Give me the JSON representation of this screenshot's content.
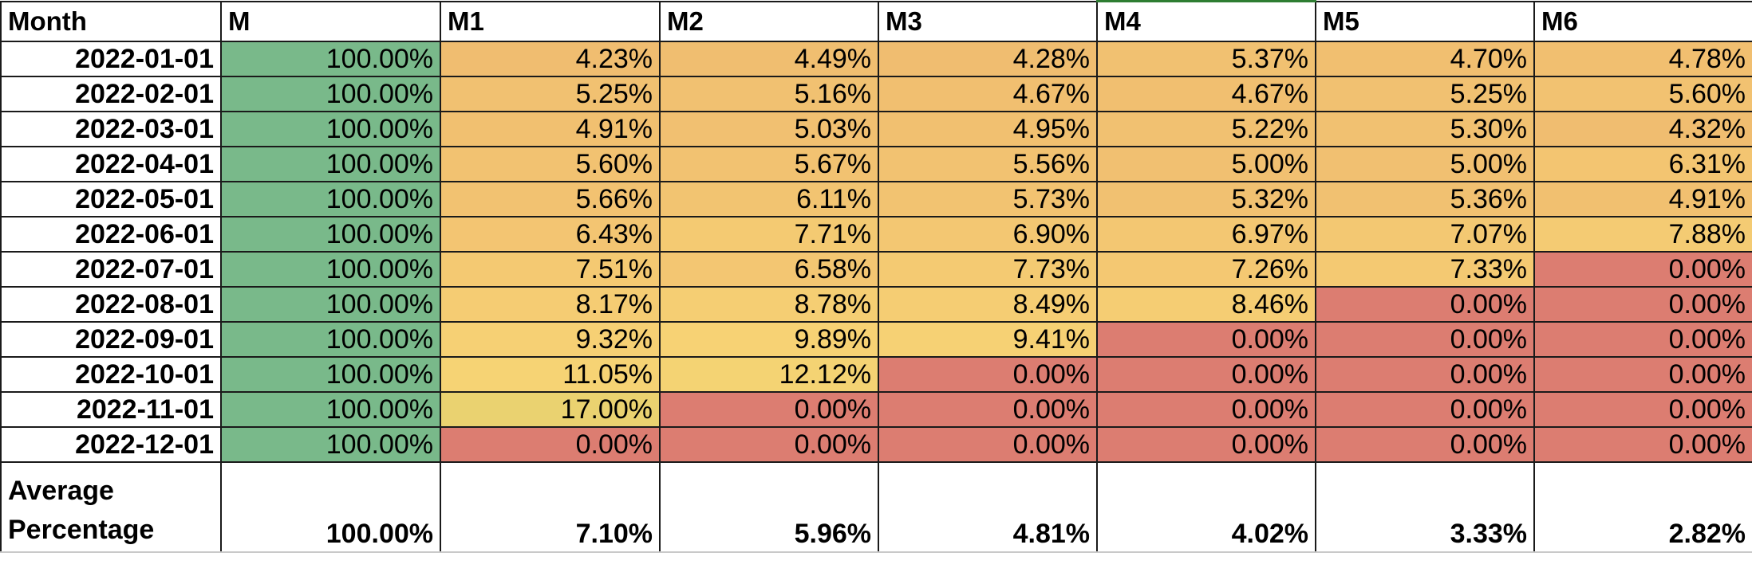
{
  "colors": {
    "green": "#79b98a",
    "red": "#dc7d71",
    "yellow_light": "#f7d374",
    "gradient_low": "#f0bd70",
    "gradient_high": "#ead270",
    "active_cell_border": "#2e7d32"
  },
  "header": {
    "month_label": "Month",
    "columns": [
      "M",
      "M1",
      "M2",
      "M3",
      "M4",
      "M5",
      "M6"
    ]
  },
  "rows": [
    {
      "month": "2022-01-01",
      "values": [
        "100.00%",
        "4.23%",
        "4.49%",
        "4.28%",
        "5.37%",
        "4.70%",
        "4.78%"
      ]
    },
    {
      "month": "2022-02-01",
      "values": [
        "100.00%",
        "5.25%",
        "5.16%",
        "4.67%",
        "4.67%",
        "5.25%",
        "5.60%"
      ]
    },
    {
      "month": "2022-03-01",
      "values": [
        "100.00%",
        "4.91%",
        "5.03%",
        "4.95%",
        "5.22%",
        "5.30%",
        "4.32%"
      ]
    },
    {
      "month": "2022-04-01",
      "values": [
        "100.00%",
        "5.60%",
        "5.67%",
        "5.56%",
        "5.00%",
        "5.00%",
        "6.31%"
      ]
    },
    {
      "month": "2022-05-01",
      "values": [
        "100.00%",
        "5.66%",
        "6.11%",
        "5.73%",
        "5.32%",
        "5.36%",
        "4.91%"
      ]
    },
    {
      "month": "2022-06-01",
      "values": [
        "100.00%",
        "6.43%",
        "7.71%",
        "6.90%",
        "6.97%",
        "7.07%",
        "7.88%"
      ]
    },
    {
      "month": "2022-07-01",
      "values": [
        "100.00%",
        "7.51%",
        "6.58%",
        "7.73%",
        "7.26%",
        "7.33%",
        "0.00%"
      ]
    },
    {
      "month": "2022-08-01",
      "values": [
        "100.00%",
        "8.17%",
        "8.78%",
        "8.49%",
        "8.46%",
        "0.00%",
        "0.00%"
      ]
    },
    {
      "month": "2022-09-01",
      "values": [
        "100.00%",
        "9.32%",
        "9.89%",
        "9.41%",
        "0.00%",
        "0.00%",
        "0.00%"
      ]
    },
    {
      "month": "2022-10-01",
      "values": [
        "100.00%",
        "11.05%",
        "12.12%",
        "0.00%",
        "0.00%",
        "0.00%",
        "0.00%"
      ]
    },
    {
      "month": "2022-11-01",
      "values": [
        "100.00%",
        "17.00%",
        "0.00%",
        "0.00%",
        "0.00%",
        "0.00%",
        "0.00%"
      ]
    },
    {
      "month": "2022-12-01",
      "values": [
        "100.00%",
        "0.00%",
        "0.00%",
        "0.00%",
        "0.00%",
        "0.00%",
        "0.00%"
      ]
    }
  ],
  "average": {
    "label_line1": "Average",
    "label_line2": "Percentage",
    "values": [
      "100.00%",
      "7.10%",
      "5.96%",
      "4.81%",
      "4.02%",
      "3.33%",
      "2.82%"
    ]
  }
}
